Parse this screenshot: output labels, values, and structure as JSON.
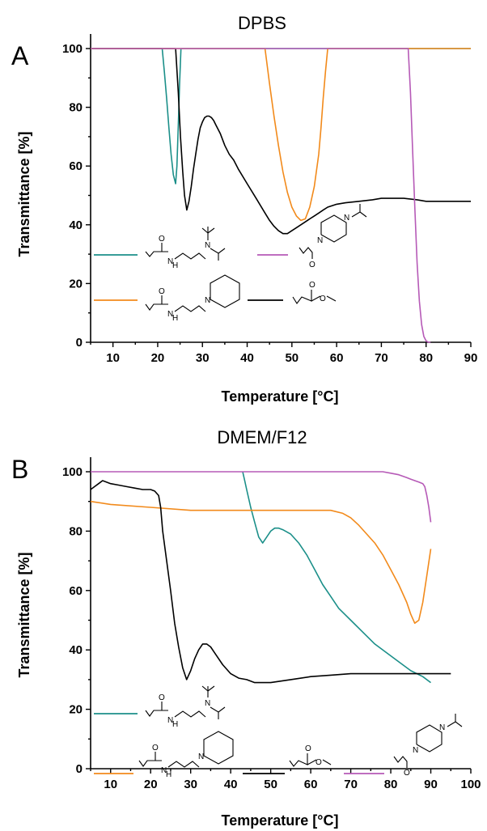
{
  "colors": {
    "teal": "#1b8f89",
    "purple": "#b65ab7",
    "orange": "#f28a1b",
    "black": "#000000"
  },
  "chart_data": [
    {
      "type": "line",
      "panel": "A",
      "title": "DPBS",
      "xlabel": "Temperature [°C]",
      "ylabel": "Transmittance [%]",
      "xlim": [
        5,
        90
      ],
      "ylim": [
        0,
        100
      ],
      "xticks": [
        10,
        20,
        30,
        40,
        50,
        60,
        70,
        80,
        90
      ],
      "yticks": [
        0,
        20,
        40,
        60,
        80,
        100
      ],
      "grid": false,
      "series": [
        {
          "color": "teal",
          "x": [
            5,
            21,
            21.5,
            22,
            22.5,
            23,
            23.5,
            24,
            24.3,
            24.6,
            24.9,
            25.2,
            90
          ],
          "y": [
            100,
            100,
            92,
            83,
            73,
            64,
            57,
            54,
            60,
            74,
            88,
            100,
            100
          ]
        },
        {
          "color": "black",
          "x": [
            5,
            24,
            24.6,
            25.1,
            25.6,
            26,
            26.5,
            27,
            27.5,
            28,
            28.5,
            29,
            29.5,
            30,
            30.5,
            31,
            31.5,
            32,
            32.5,
            33,
            34,
            35,
            36,
            37,
            38,
            40,
            42,
            44,
            45,
            46,
            47,
            48,
            49,
            50,
            51,
            52,
            53,
            54,
            55,
            56,
            57,
            58,
            60,
            62,
            65,
            68,
            70,
            72,
            75,
            78,
            80,
            85,
            90
          ],
          "y": [
            100,
            100,
            85,
            70,
            58,
            50,
            45,
            48,
            53,
            59,
            64,
            69,
            73,
            75,
            76.5,
            77,
            77,
            76.5,
            75.5,
            74,
            71,
            67,
            64,
            62,
            59,
            54,
            49,
            44,
            41.5,
            39.5,
            38,
            37,
            37,
            38,
            39,
            40,
            41,
            42,
            43,
            44,
            45,
            46,
            47,
            47.5,
            48,
            48.5,
            49,
            49,
            49,
            48.5,
            48,
            48,
            48
          ]
        },
        {
          "color": "orange",
          "x": [
            5,
            44,
            44.5,
            45,
            46,
            47,
            48,
            49,
            50,
            51,
            52,
            53,
            54,
            55,
            56,
            56.5,
            57,
            57.5,
            58,
            90
          ],
          "y": [
            100,
            100,
            94,
            88,
            77,
            67,
            58,
            51,
            46,
            43,
            41.5,
            42,
            46,
            53,
            64,
            73,
            83,
            92,
            100,
            100
          ]
        },
        {
          "color": "purple",
          "x": [
            5,
            76,
            76.5,
            77,
            77.5,
            78,
            78.5,
            79,
            79.5,
            80,
            80.5,
            81
          ],
          "y": [
            100,
            100,
            85,
            65,
            45,
            27,
            14,
            6,
            2,
            0.5,
            0,
            0
          ]
        }
      ]
    },
    {
      "type": "line",
      "panel": "B",
      "title": "DMEM/F12",
      "xlabel": "Temperature [°C]",
      "ylabel": "Transmittance [%]",
      "xlim": [
        5,
        100
      ],
      "ylim": [
        0,
        100
      ],
      "xticks": [
        10,
        20,
        30,
        40,
        50,
        60,
        70,
        80,
        90,
        100
      ],
      "yticks": [
        0,
        20,
        40,
        60,
        80,
        100
      ],
      "grid": false,
      "series": [
        {
          "color": "teal",
          "x": [
            43,
            43.5,
            44,
            45,
            46,
            47,
            48,
            49,
            50,
            51,
            52,
            53,
            55,
            57,
            59,
            61,
            63,
            65,
            67,
            70,
            73,
            76,
            79,
            82,
            85,
            88,
            90
          ],
          "y": [
            100,
            97,
            94,
            88,
            83,
            78,
            76,
            78,
            80,
            81,
            81,
            80.5,
            79,
            76,
            72,
            67,
            62,
            58,
            54,
            50,
            46,
            42,
            39,
            36,
            33,
            31,
            29
          ]
        },
        {
          "color": "orange",
          "x": [
            5,
            10,
            20,
            30,
            40,
            50,
            60,
            65,
            68,
            70,
            72,
            74,
            76,
            78,
            80,
            82,
            84,
            85,
            86,
            87,
            88,
            89,
            90
          ],
          "y": [
            90,
            89,
            88,
            87,
            87,
            87,
            87,
            87,
            86,
            84.5,
            82,
            79,
            76,
            72,
            67,
            62,
            56,
            52,
            49,
            50,
            56,
            65,
            74
          ]
        },
        {
          "color": "black",
          "x": [
            5,
            6,
            7,
            8,
            10,
            12,
            14,
            16,
            18,
            20,
            21,
            22,
            22.5,
            23,
            24,
            25,
            26,
            27,
            28,
            29,
            30,
            31,
            32,
            33,
            34,
            35,
            36,
            38,
            40,
            42,
            44,
            46,
            50,
            55,
            60,
            65,
            70,
            75,
            80,
            85,
            90,
            95
          ],
          "y": [
            94,
            95,
            96,
            97,
            96,
            95.5,
            95,
            94.5,
            94,
            94,
            93.5,
            92,
            88,
            80,
            70,
            60,
            49,
            41,
            34,
            30,
            33,
            37,
            40,
            42,
            42,
            41,
            39,
            35,
            32,
            30.5,
            30,
            29,
            29,
            30,
            31,
            31.5,
            32,
            32,
            32,
            32,
            32,
            32
          ]
        },
        {
          "color": "purple",
          "x": [
            5,
            20,
            40,
            60,
            70,
            75,
            78,
            80,
            82,
            84,
            85,
            86,
            87,
            88,
            88.5,
            89,
            89.5,
            90
          ],
          "y": [
            100,
            100,
            100,
            100,
            100,
            100,
            100,
            99.5,
            99,
            98,
            97.5,
            97,
            96.5,
            96,
            95,
            92,
            88,
            83
          ]
        }
      ]
    }
  ]
}
